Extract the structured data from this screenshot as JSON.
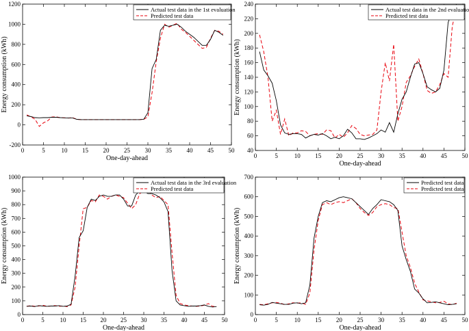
{
  "colors": {
    "actual": "#000000",
    "predicted": "#e8000b",
    "axis": "#000000"
  },
  "chart_data": [
    {
      "type": "line",
      "xlabel": "One-day-ahead",
      "ylabel": "Energy consumption (kWh)",
      "xlim": [
        0,
        50
      ],
      "ylim": [
        -200,
        1200
      ],
      "xticks": [
        0,
        5,
        10,
        15,
        20,
        25,
        30,
        35,
        40,
        45,
        50
      ],
      "yticks": [
        -200,
        0,
        200,
        400,
        600,
        800,
        1000,
        1200
      ],
      "grid": false,
      "legend": "top-right",
      "x": [
        1,
        2,
        3,
        4,
        5,
        6,
        7,
        8,
        9,
        10,
        11,
        12,
        13,
        14,
        15,
        16,
        17,
        18,
        19,
        20,
        21,
        22,
        23,
        24,
        25,
        26,
        27,
        28,
        29,
        30,
        31,
        32,
        33,
        34,
        35,
        36,
        37,
        38,
        39,
        40,
        41,
        42,
        43,
        44,
        45,
        46,
        47,
        48
      ],
      "series": [
        {
          "name": "Actual test data in the 1st evaluation",
          "style": "solid",
          "values": [
            90,
            82,
            72,
            70,
            72,
            72,
            75,
            75,
            72,
            70,
            68,
            68,
            55,
            52,
            52,
            52,
            52,
            52,
            52,
            52,
            52,
            52,
            52,
            52,
            52,
            52,
            52,
            52,
            55,
            120,
            560,
            650,
            940,
            990,
            980,
            990,
            1000,
            970,
            930,
            900,
            870,
            830,
            790,
            790,
            850,
            940,
            920,
            890
          ]
        },
        {
          "name": "Predicted test data",
          "style": "dashed",
          "values": [
            100,
            80,
            55,
            -15,
            20,
            40,
            78,
            80,
            72,
            70,
            68,
            72,
            55,
            52,
            52,
            52,
            52,
            52,
            52,
            52,
            52,
            52,
            52,
            52,
            52,
            52,
            52,
            52,
            55,
            80,
            320,
            630,
            860,
            1000,
            970,
            990,
            1010,
            950,
            920,
            880,
            840,
            800,
            760,
            770,
            860,
            940,
            930,
            900
          ]
        }
      ]
    },
    {
      "type": "line",
      "xlabel": "One-day-ahead",
      "ylabel": "Energy consumption (kWh)",
      "xlim": [
        0,
        50
      ],
      "ylim": [
        40,
        240
      ],
      "xticks": [
        0,
        5,
        10,
        15,
        20,
        25,
        30,
        35,
        40,
        45,
        50
      ],
      "yticks": [
        40,
        60,
        80,
        100,
        120,
        140,
        160,
        180,
        200,
        220,
        240
      ],
      "grid": false,
      "legend": "top-right",
      "x": [
        1,
        2,
        3,
        4,
        5,
        6,
        7,
        8,
        9,
        10,
        11,
        12,
        13,
        14,
        15,
        16,
        17,
        18,
        19,
        20,
        21,
        22,
        23,
        24,
        25,
        26,
        27,
        28,
        29,
        30,
        31,
        32,
        33,
        34,
        35,
        36,
        37,
        38,
        39,
        40,
        41,
        42,
        43,
        44,
        45,
        46,
        47,
        48
      ],
      "series": [
        {
          "name": "Actual test data in the 2nd evaluation",
          "style": "solid",
          "values": [
            175,
            150,
            142,
            132,
            108,
            75,
            64,
            62,
            63,
            63,
            62,
            57,
            60,
            62,
            61,
            63,
            60,
            56,
            58,
            56,
            60,
            69,
            64,
            56,
            56,
            55,
            57,
            60,
            63,
            68,
            65,
            78,
            65,
            90,
            110,
            120,
            140,
            158,
            160,
            145,
            127,
            123,
            120,
            125,
            150,
            215,
            230,
            240
          ]
        },
        {
          "name": "Predicted test data",
          "style": "dashed",
          "values": [
            198,
            175,
            140,
            80,
            95,
            62,
            83,
            60,
            64,
            64,
            67,
            66,
            60,
            62,
            63,
            62,
            68,
            67,
            57,
            62,
            58,
            64,
            74,
            70,
            62,
            60,
            61,
            62,
            68,
            120,
            160,
            135,
            185,
            80,
            100,
            133,
            142,
            155,
            165,
            145,
            122,
            118,
            120,
            130,
            145,
            140,
            210,
            235
          ]
        }
      ]
    },
    {
      "type": "line",
      "xlabel": "One-day-ahead",
      "ylabel": "Energy consumption (kWh)",
      "xlim": [
        0,
        50
      ],
      "ylim": [
        0,
        1000
      ],
      "xticks": [
        0,
        5,
        10,
        15,
        20,
        25,
        30,
        35,
        40,
        45,
        50
      ],
      "yticks": [
        0,
        100,
        200,
        300,
        400,
        500,
        600,
        700,
        800,
        900,
        1000
      ],
      "grid": false,
      "legend": "top-right",
      "x": [
        1,
        2,
        3,
        4,
        5,
        6,
        7,
        8,
        9,
        10,
        11,
        12,
        13,
        14,
        15,
        16,
        17,
        18,
        19,
        20,
        21,
        22,
        23,
        24,
        25,
        26,
        27,
        28,
        29,
        30,
        31,
        32,
        33,
        34,
        35,
        36,
        37,
        38,
        39,
        40,
        41,
        42,
        43,
        44,
        45,
        46,
        47,
        48
      ],
      "series": [
        {
          "name": "Actual test data in the 3rd evaluation",
          "style": "solid",
          "values": [
            60,
            62,
            58,
            65,
            62,
            60,
            62,
            62,
            65,
            60,
            62,
            75,
            280,
            560,
            610,
            780,
            840,
            830,
            860,
            870,
            860,
            860,
            870,
            870,
            840,
            790,
            790,
            870,
            900,
            900,
            880,
            880,
            870,
            850,
            820,
            750,
            320,
            100,
            70,
            65,
            60,
            62,
            62,
            65,
            70,
            60,
            55,
            58
          ]
        },
        {
          "name": "Predicted test data",
          "style": "dashed",
          "values": [
            60,
            65,
            60,
            62,
            68,
            60,
            62,
            65,
            60,
            62,
            58,
            70,
            200,
            500,
            770,
            780,
            830,
            820,
            870,
            860,
            840,
            860,
            870,
            860,
            850,
            810,
            770,
            800,
            880,
            900,
            910,
            870,
            850,
            860,
            830,
            800,
            450,
            140,
            80,
            70,
            65,
            62,
            60,
            62,
            68,
            80,
            60,
            58
          ]
        }
      ]
    },
    {
      "type": "line",
      "xlabel": "One-day-ahead",
      "ylabel": "Energy consumption (kWh)",
      "xlim": [
        0,
        50
      ],
      "ylim": [
        0,
        700
      ],
      "xticks": [
        0,
        5,
        10,
        15,
        20,
        25,
        30,
        35,
        40,
        45,
        50
      ],
      "yticks": [
        0,
        100,
        200,
        300,
        400,
        500,
        600,
        700
      ],
      "grid": false,
      "legend": "top-right",
      "x": [
        1,
        2,
        3,
        4,
        5,
        6,
        7,
        8,
        9,
        10,
        11,
        12,
        13,
        14,
        15,
        16,
        17,
        18,
        19,
        20,
        21,
        22,
        23,
        24,
        25,
        26,
        27,
        28,
        29,
        30,
        31,
        32,
        33,
        34,
        35,
        36,
        37,
        38,
        39,
        40,
        41,
        42,
        43,
        44,
        45,
        46,
        47,
        48
      ],
      "series": [
        {
          "name": "Predicted test data",
          "style": "solid",
          "values": [
            50,
            48,
            52,
            62,
            58,
            55,
            52,
            52,
            58,
            60,
            55,
            60,
            150,
            390,
            500,
            570,
            580,
            575,
            585,
            595,
            600,
            595,
            590,
            570,
            550,
            530,
            510,
            540,
            560,
            585,
            580,
            575,
            560,
            530,
            350,
            280,
            220,
            130,
            110,
            80,
            60,
            62,
            65,
            60,
            55,
            50,
            52,
            55
          ]
        },
        {
          "name": "Predicted test data",
          "style": "dashed",
          "values": [
            52,
            50,
            55,
            60,
            62,
            58,
            50,
            55,
            60,
            58,
            60,
            52,
            110,
            330,
            480,
            560,
            570,
            560,
            570,
            575,
            570,
            580,
            590,
            570,
            540,
            520,
            505,
            520,
            550,
            560,
            565,
            560,
            545,
            540,
            420,
            300,
            240,
            160,
            115,
            75,
            70,
            65,
            60,
            62,
            68,
            55,
            50,
            58
          ]
        }
      ]
    }
  ]
}
